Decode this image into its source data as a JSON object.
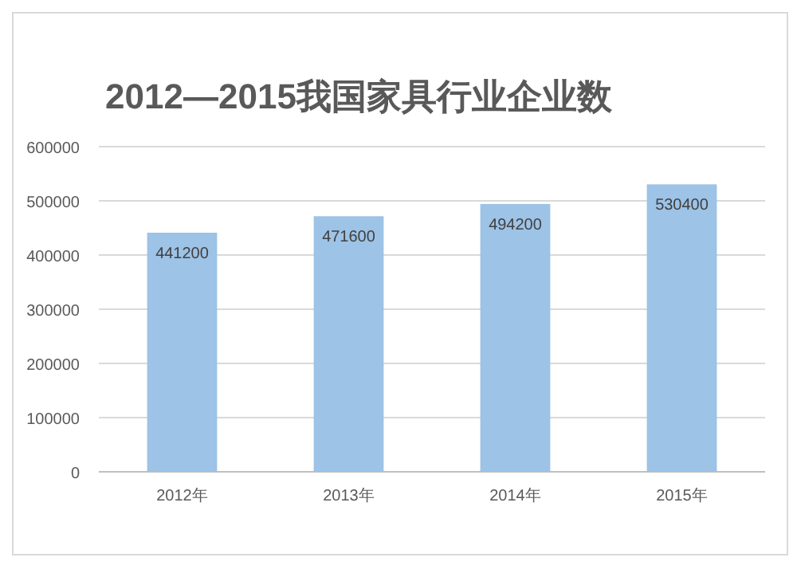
{
  "chart_data": {
    "type": "bar",
    "title": "2012—2015我国家具行业企业数",
    "categories": [
      "2012年",
      "2013年",
      "2014年",
      "2015年"
    ],
    "values": [
      441200,
      471600,
      494200,
      530400
    ],
    "color": "#9dc3e6",
    "ylim": [
      0,
      600000
    ],
    "yticks": [
      0,
      100000,
      200000,
      300000,
      400000,
      500000,
      600000
    ],
    "grid": "y",
    "data_labels": true
  }
}
